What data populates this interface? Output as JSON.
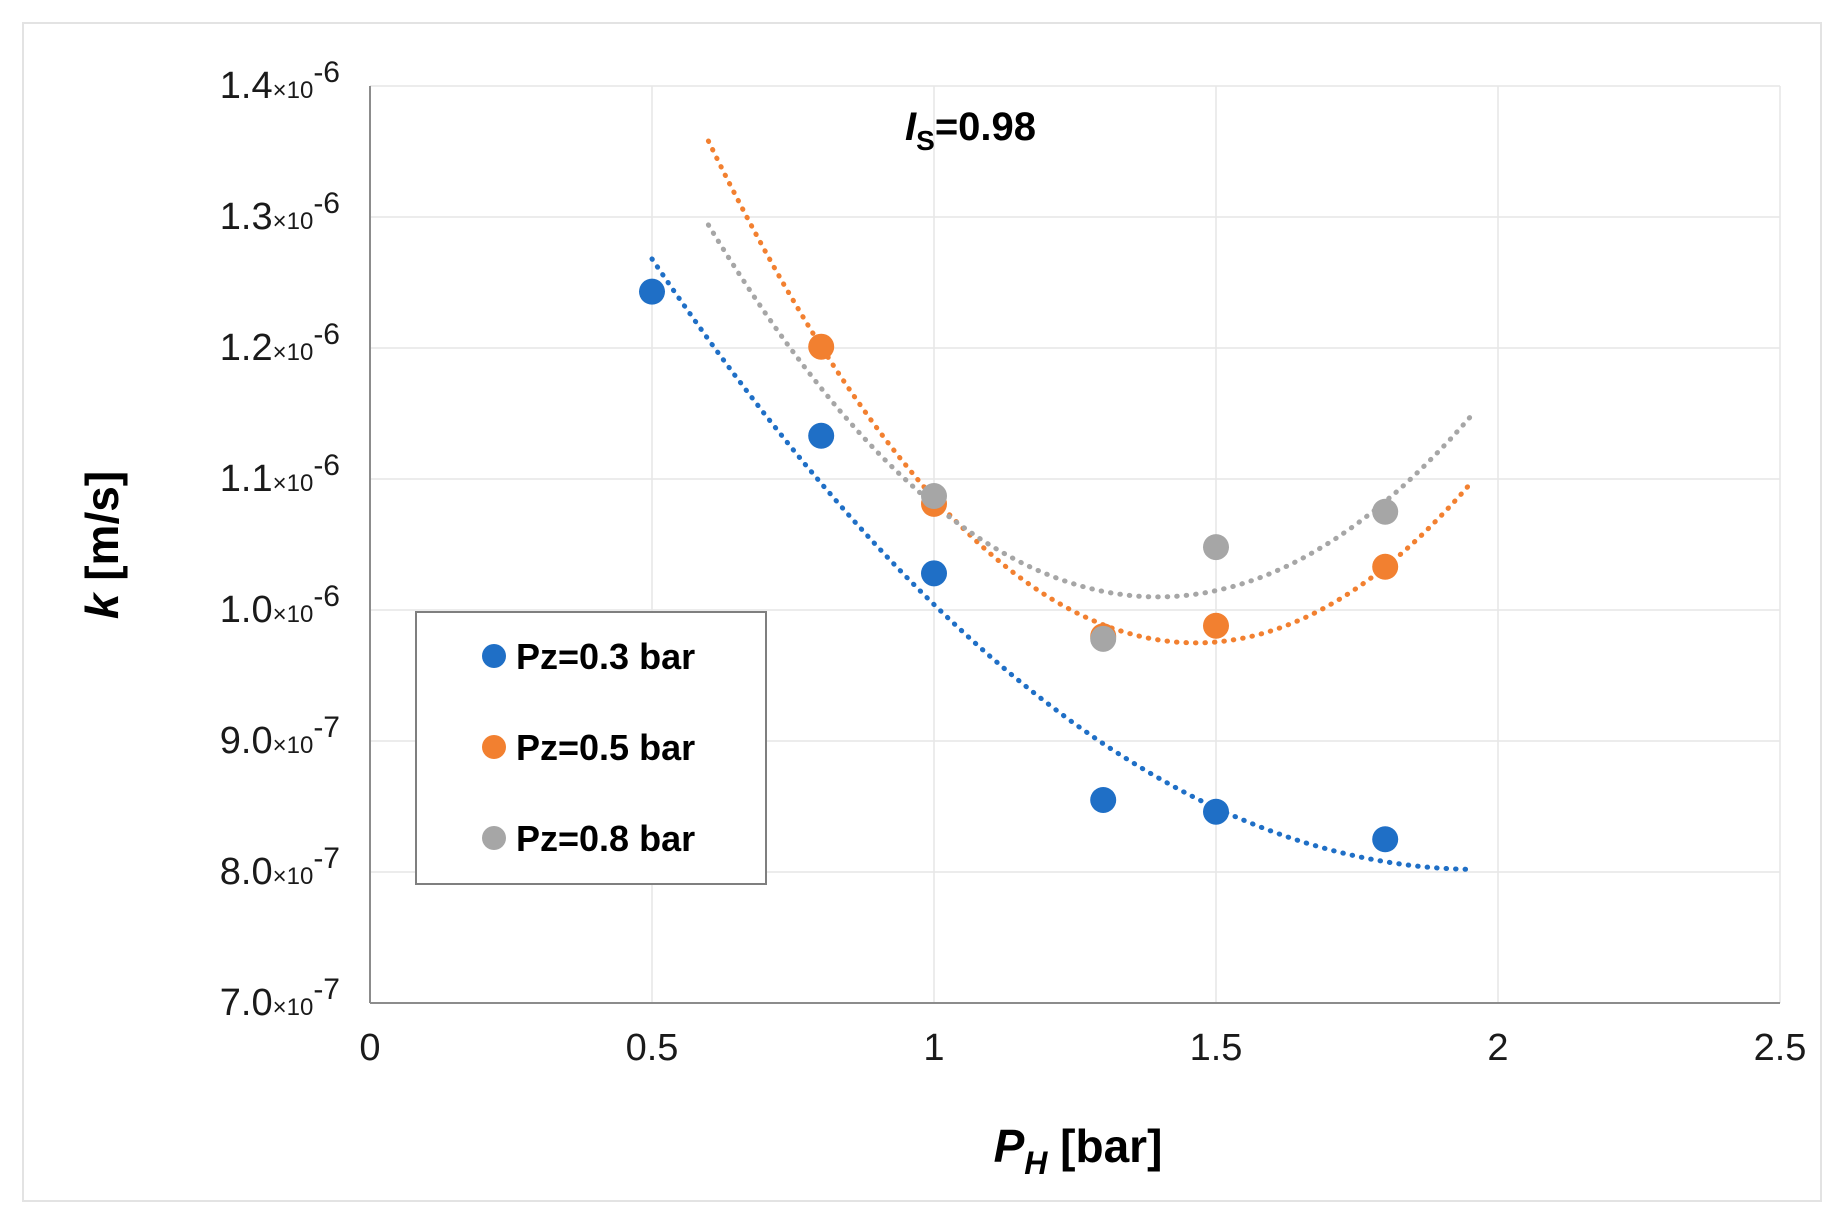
{
  "chart_data": {
    "type": "scatter",
    "title": "",
    "annotation": {
      "main": "I",
      "sub": "S",
      "rest": "=0.98"
    },
    "xlabel": {
      "main": "P",
      "sub": "H",
      "rest": " [bar]"
    },
    "ylabel": {
      "italic": "k",
      "rest": " [m/s]"
    },
    "xlim": [
      0,
      2.5
    ],
    "ylim": [
      7e-07,
      1.4e-06
    ],
    "x_ticks": [
      {
        "value": 0,
        "label": "0"
      },
      {
        "value": 0.5,
        "label": "0.5"
      },
      {
        "value": 1,
        "label": "1"
      },
      {
        "value": 1.5,
        "label": "1.5"
      },
      {
        "value": 2,
        "label": "2"
      },
      {
        "value": 2.5,
        "label": "2.5"
      }
    ],
    "y_ticks": [
      {
        "value": 7e-07,
        "mantissa": "7.0",
        "times": "×10",
        "exponent": "-7"
      },
      {
        "value": 8e-07,
        "mantissa": "8.0",
        "times": "×10",
        "exponent": "-7"
      },
      {
        "value": 9e-07,
        "mantissa": "9.0",
        "times": "×10",
        "exponent": "-7"
      },
      {
        "value": 1e-06,
        "mantissa": "1.0",
        "times": "×10",
        "exponent": "-6"
      },
      {
        "value": 1.1e-06,
        "mantissa": "1.1",
        "times": "×10",
        "exponent": "-6"
      },
      {
        "value": 1.2e-06,
        "mantissa": "1.2",
        "times": "×10",
        "exponent": "-6"
      },
      {
        "value": 1.3e-06,
        "mantissa": "1.3",
        "times": "×10",
        "exponent": "-6"
      },
      {
        "value": 1.4e-06,
        "mantissa": "1.4",
        "times": "×10",
        "exponent": "-6"
      }
    ],
    "grid": true,
    "legend_position": "left-middle",
    "series": [
      {
        "name": "Pz=0.3 bar",
        "color": "#1f6fc6",
        "x": [
          0.5,
          0.8,
          1.0,
          1.3,
          1.5,
          1.8
        ],
        "y": [
          1.243e-06,
          1.133e-06,
          1.028e-06,
          8.55e-07,
          8.46e-07,
          8.25e-07
        ],
        "trend": {
          "type": "polynomial-2",
          "x_range": [
            0.5,
            1.95
          ],
          "points": [
            [
              0.5,
              1.268e-06
            ],
            [
              1.3,
              8.98e-07
            ],
            [
              1.95,
              8.02e-07
            ]
          ]
        }
      },
      {
        "name": "Pz=0.5 bar",
        "color": "#f28030",
        "x": [
          0.8,
          1.0,
          1.3,
          1.5,
          1.8
        ],
        "y": [
          1.201e-06,
          1.081e-06,
          9.8e-07,
          9.88e-07,
          1.033e-06
        ],
        "trend": {
          "type": "polynomial-2",
          "x_range": [
            0.6,
            1.95
          ],
          "points": [
            [
              0.6,
              1.358e-06
            ],
            [
              1.45,
              9.75e-07
            ],
            [
              1.95,
              1.096e-06
            ]
          ]
        }
      },
      {
        "name": "Pz=0.8 bar",
        "color": "#a6a6a6",
        "x": [
          1.0,
          1.3,
          1.5,
          1.8
        ],
        "y": [
          1.087e-06,
          9.78e-07,
          1.048e-06,
          1.075e-06
        ],
        "trend": {
          "type": "polynomial-2",
          "x_range": [
            0.6,
            1.95
          ],
          "points": [
            [
              0.6,
              1.294e-06
            ],
            [
              1.4,
              1.01e-06
            ],
            [
              1.95,
              1.147e-06
            ]
          ]
        }
      }
    ]
  }
}
